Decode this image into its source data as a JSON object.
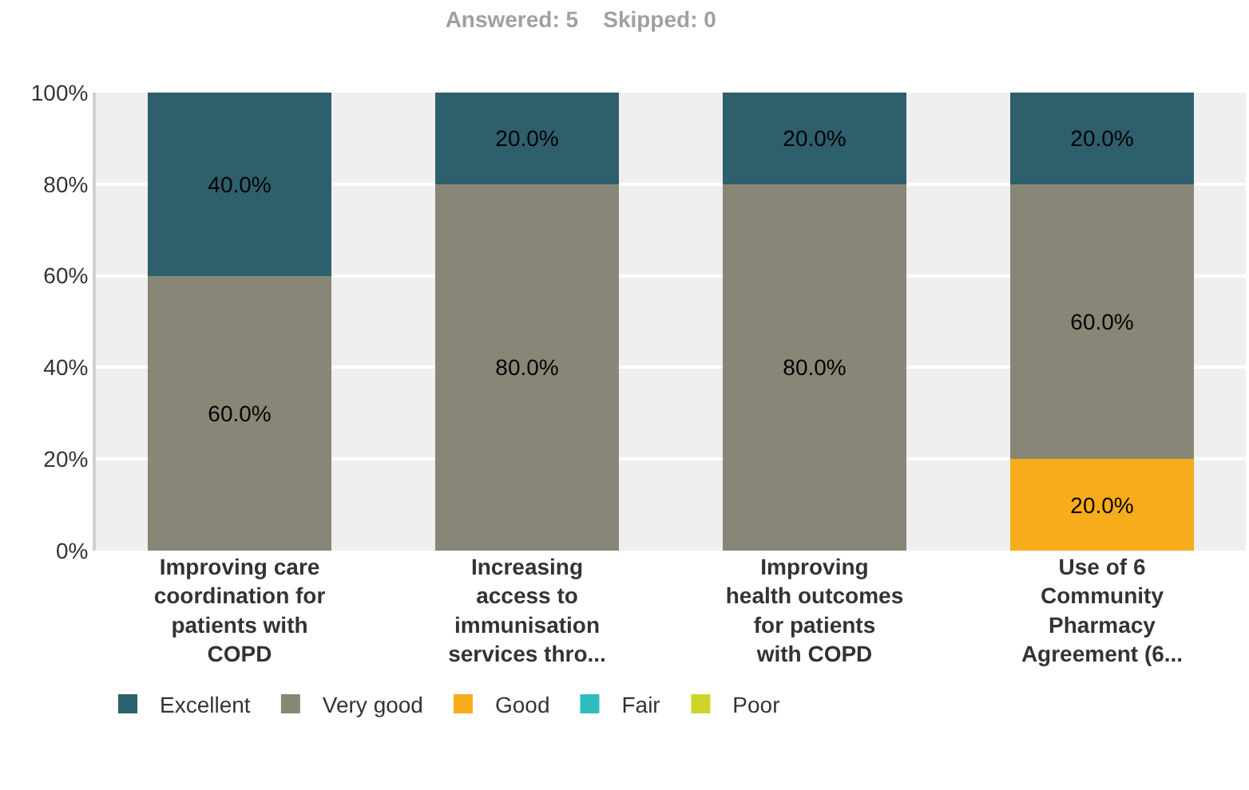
{
  "chart_data": {
    "type": "bar",
    "stacked": true,
    "title": "Answered: 5    Skipped: 0",
    "categories": [
      "Improving care\ncoordination for\npatients with\nCOPD",
      "Increasing\naccess to\nimmunisation\nservices thro...",
      "Improving\nhealth outcomes\nfor patients\nwith COPD",
      "Use of 6\nCommunity\nPharmacy\nAgreement (6..."
    ],
    "series": [
      {
        "name": "Poor",
        "color": "#cfd42a",
        "values": [
          0,
          0,
          0,
          0
        ],
        "value_labels": [
          null,
          null,
          null,
          null
        ]
      },
      {
        "name": "Fair",
        "color": "#2fbcbc",
        "values": [
          0,
          0,
          0,
          0
        ],
        "value_labels": [
          null,
          null,
          null,
          null
        ]
      },
      {
        "name": "Good",
        "color": "#f7ac1c",
        "values": [
          0,
          0,
          0,
          20
        ],
        "value_labels": [
          null,
          null,
          null,
          "20.0%"
        ]
      },
      {
        "name": "Very good",
        "color": "#888777",
        "values": [
          60,
          80,
          80,
          60
        ],
        "value_labels": [
          "60.0%",
          "80.0%",
          "80.0%",
          "60.0%"
        ]
      },
      {
        "name": "Excellent",
        "color": "#2e5f6c",
        "values": [
          40,
          20,
          20,
          20
        ],
        "value_labels": [
          "40.0%",
          "20.0%",
          "20.0%",
          "20.0%"
        ]
      }
    ],
    "ylim": [
      0,
      100
    ],
    "yticks": [
      {
        "value": 0,
        "label": "0%"
      },
      {
        "value": 20,
        "label": "20%"
      },
      {
        "value": 40,
        "label": "40%"
      },
      {
        "value": 60,
        "label": "60%"
      },
      {
        "value": 80,
        "label": "80%"
      },
      {
        "value": 100,
        "label": "100%"
      }
    ],
    "grid": "y",
    "legend": "bottom left"
  }
}
